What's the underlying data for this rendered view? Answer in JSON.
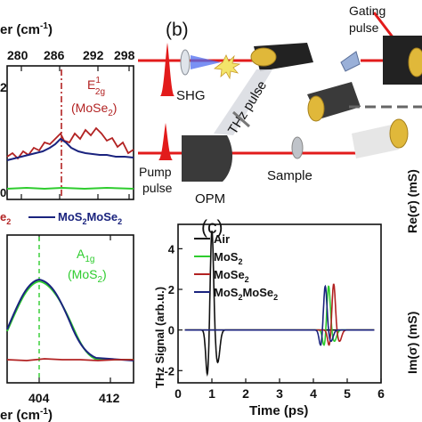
{
  "raman_top": {
    "axis_label_fragment": "er (cm",
    "axis_label_sup": "-1",
    "axis_label_close": ")",
    "ticks": [
      "280",
      "286",
      "292",
      "298"
    ],
    "y_tick_partial": "2",
    "y_tick_zero": "0",
    "peak_name": "E",
    "peak_sup": "1",
    "peak_sub": "2g",
    "peak_material": "(MoSe",
    "peak_material_sub": "2",
    "peak_material_close": ")"
  },
  "raman_legend": {
    "left_fragment": "e",
    "left_sub": "2",
    "right": "MoS",
    "right_sub1": "2",
    "right_mid": "MoSe",
    "right_sub2": "2"
  },
  "raman_bottom": {
    "peak_name": "A",
    "peak_sub": "1g",
    "peak_material": "(MoS",
    "peak_material_sub": "2",
    "peak_material_close": ")",
    "ticks": [
      "404",
      "412"
    ],
    "axis_label_fragment": "er (cm",
    "axis_label_sup": "-1",
    "axis_label_close": ")"
  },
  "panel_b": {
    "panel_label": "(b)",
    "labels": {
      "gating_line1": "Gating",
      "gating_line2": "pulse",
      "shg": "SHG",
      "thz_pulse": "THz pulse",
      "pump_line1": "Pump",
      "pump_line2": "pulse",
      "opm": "OPM",
      "sample": "Sample"
    }
  },
  "right_axis_labels": {
    "re_label": "Re(σ) (mS)",
    "im_label": "Im(σ) (mS)"
  },
  "colors": {
    "air": "#111111",
    "mos2": "#2ecc2e",
    "mose2": "#b22222",
    "hetero": "#1a237e",
    "red_beam": "#e21b1b",
    "mirror": "#e0b83a"
  },
  "chart_data": {
    "type": "line",
    "panel_label": "(c)",
    "xlabel": "Time (ps)",
    "ylabel": "THz Signal (arb.u.)",
    "xlim": [
      0,
      6
    ],
    "ylim": [
      -2.6,
      5.2
    ],
    "x_ticks": [
      "0",
      "1",
      "2",
      "3",
      "4",
      "5",
      "6"
    ],
    "y_ticks": [
      "-2",
      "0",
      "2",
      "4"
    ],
    "legend": [
      "Air",
      "MoS2",
      "MoSe2",
      "MoS2MoSe2"
    ],
    "series": [
      {
        "name": "Air",
        "color": "#111111",
        "type": "pulse",
        "center": 1.0,
        "amp": 5.0,
        "neg": -2.3
      },
      {
        "name": "MoS2",
        "color": "#2ecc2e",
        "type": "pulse",
        "center": 4.45,
        "amp": 2.2,
        "neg": -0.8
      },
      {
        "name": "MoSe2",
        "color": "#b22222",
        "type": "pulse",
        "center": 4.6,
        "amp": 2.3,
        "neg": -0.8
      },
      {
        "name": "MoS2MoSe2",
        "color": "#1a237e",
        "type": "pulse",
        "center": 4.35,
        "amp": 2.2,
        "neg": -0.8
      }
    ]
  }
}
